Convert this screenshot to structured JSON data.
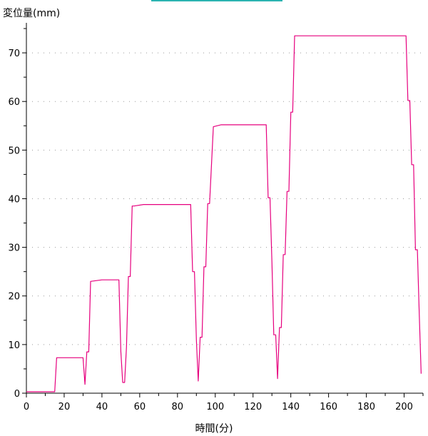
{
  "chart_data": {
    "type": "line",
    "ylabel": "変位量(mm)",
    "xlabel": "時間(分)",
    "xlim": [
      0,
      210
    ],
    "ylim": [
      0,
      75
    ],
    "xticks": [
      0,
      20,
      40,
      60,
      80,
      100,
      120,
      140,
      160,
      180,
      200
    ],
    "yticks": [
      0,
      10,
      20,
      30,
      40,
      50,
      60,
      70
    ],
    "grid": "horizontal-dotted",
    "series": [
      {
        "color": "#e6007e",
        "x": [
          0,
          15,
          16,
          30,
          31,
          32,
          33,
          34,
          40,
          49,
          50,
          51,
          52,
          53,
          54,
          55,
          56,
          57,
          62,
          87,
          88,
          89,
          90,
          91,
          92,
          93,
          94,
          95,
          96,
          97,
          99,
          103,
          127,
          128,
          129,
          130,
          131,
          132,
          133,
          134,
          135,
          136,
          137,
          138,
          139,
          140,
          141,
          142,
          201,
          202,
          203,
          204,
          205,
          206,
          207,
          208,
          209
        ],
        "y": [
          0.3,
          0.3,
          7.3,
          7.3,
          1.8,
          8.5,
          8.5,
          23,
          23.3,
          23.3,
          8.6,
          2.2,
          2.2,
          9.5,
          24,
          24,
          38.5,
          38.5,
          38.8,
          38.8,
          25,
          25,
          11,
          2.5,
          11.5,
          11.5,
          26,
          26,
          39,
          39,
          54.8,
          55.2,
          55.2,
          40.2,
          40.2,
          27,
          12,
          12,
          3,
          13.5,
          13.5,
          28.5,
          28.5,
          41.5,
          41.5,
          57.8,
          57.8,
          73.5,
          73.5,
          60.2,
          60.2,
          47,
          47,
          29.5,
          29.5,
          16.5,
          4
        ]
      }
    ]
  }
}
